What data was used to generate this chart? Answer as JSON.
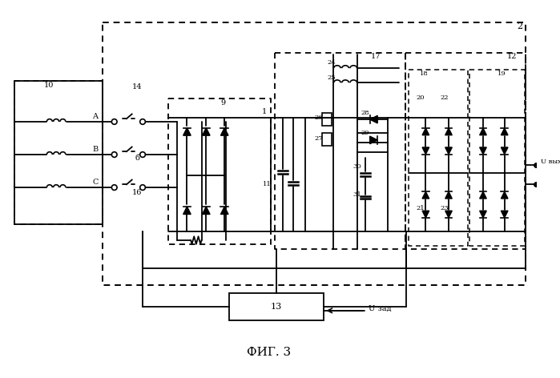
{
  "title": "ФИГ. 3",
  "bg_color": "#ffffff",
  "line_color": "#000000",
  "figsize": [
    6.99,
    4.72
  ],
  "dpi": 100,
  "labels": {
    "fig": "ФИГ. 3",
    "block2": "2",
    "block10": "10",
    "block9": "9",
    "block17": "17",
    "block12": "12",
    "block18": "18",
    "block19": "19",
    "block13": "13",
    "phA": "A",
    "phB": "B",
    "phC": "C",
    "sw14": "14",
    "sw15": "б",
    "sw16": "16",
    "num1": "1",
    "num11": "11",
    "num20": "20",
    "num21": "21",
    "num22": "22",
    "num23": "23",
    "num24": "24",
    "num25": "25",
    "num26": "26",
    "num27": "27",
    "num28": "28",
    "num29": "29",
    "num30": "30",
    "num31": "31",
    "u_out": "U вых",
    "u_set": "U зад"
  }
}
